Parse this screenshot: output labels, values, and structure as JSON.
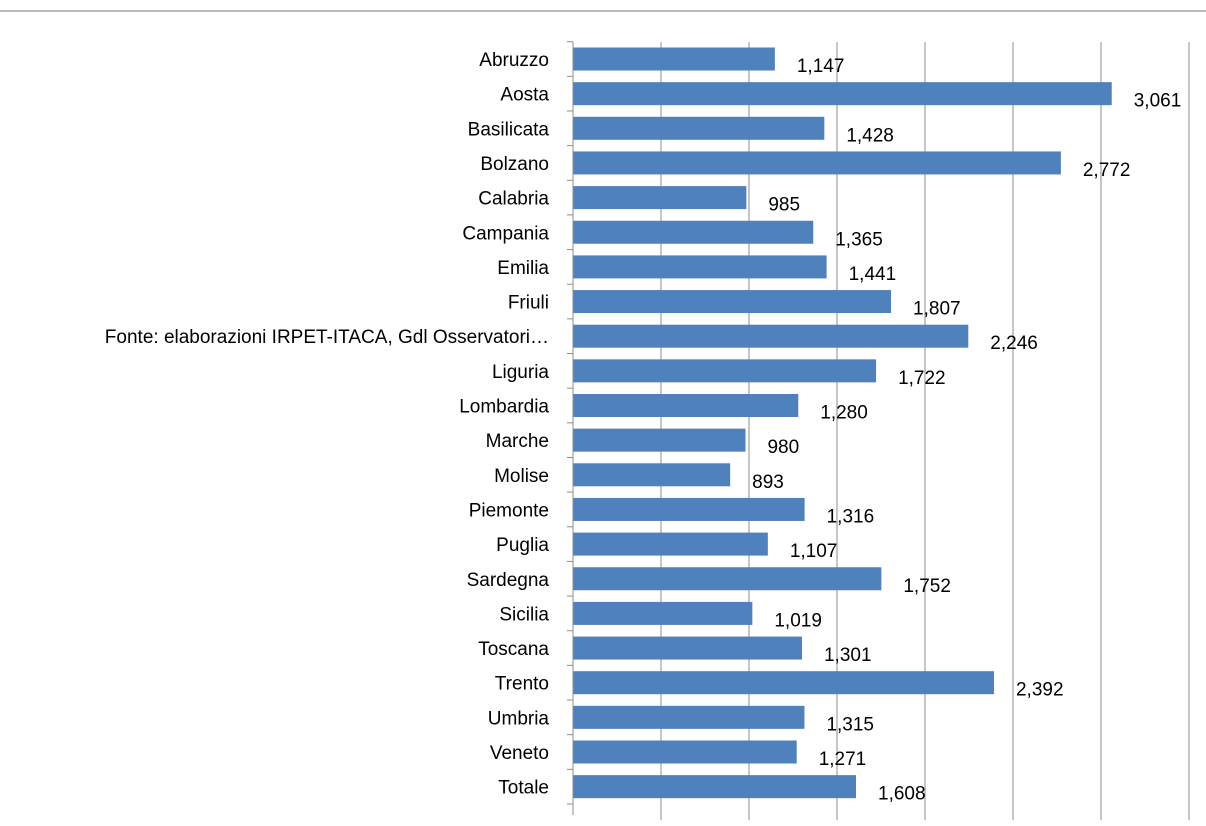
{
  "chart_data": {
    "type": "bar",
    "orientation": "horizontal",
    "categories": [
      "Abruzzo",
      "Aosta",
      "Basilicata",
      "Bolzano",
      "Calabria",
      "Campania",
      "Emilia",
      "Friuli",
      "Fonte: elaborazioni IRPET-ITACA, Gdl Osservatori…",
      "Liguria",
      "Lombardia",
      "Marche",
      "Molise",
      "Piemonte",
      "Puglia",
      "Sardegna",
      "Sicilia",
      "Toscana",
      "Trento",
      "Umbria",
      "Veneto",
      "Totale"
    ],
    "values": [
      1147,
      3061,
      1428,
      2772,
      985,
      1365,
      1441,
      1807,
      2246,
      1722,
      1280,
      980,
      893,
      1316,
      1107,
      1752,
      1019,
      1301,
      2392,
      1315,
      1271,
      1608
    ],
    "value_labels": [
      "1,147",
      "3,061",
      "1,428",
      "2,772",
      "985",
      "1,365",
      "1,441",
      "1,807",
      "2,246",
      "1,722",
      "1,280",
      "980",
      "893",
      "1,316",
      "1,107",
      "1,752",
      "1,019",
      "1,301",
      "2,392",
      "1,315",
      "1,271",
      "1,608"
    ],
    "xlim": [
      0,
      3500
    ],
    "grid_step": 500,
    "grid": true,
    "legend": "none",
    "colors": {
      "bar": "#4f81bd",
      "grid": "#8c8c8c",
      "axis": "#8c8c8c",
      "top_rule": "#a6a6a6"
    }
  }
}
